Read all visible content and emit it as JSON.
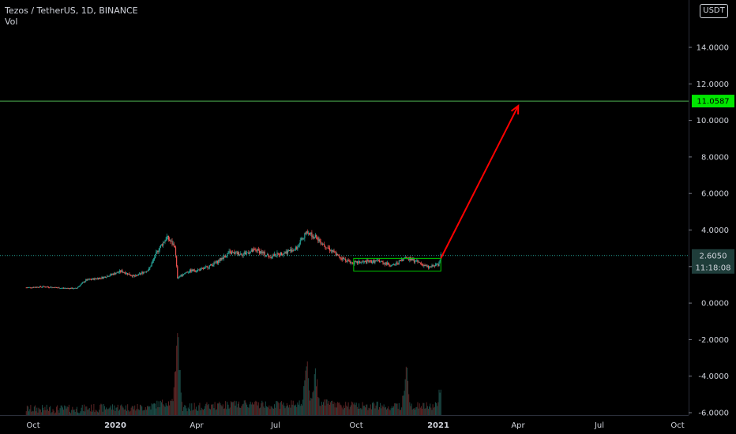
{
  "header": {
    "symbol_line": "Tezos / TetherUS, 1D, BINANCE",
    "volume_label": "Vol"
  },
  "currency_button": "USDT",
  "price_tags": {
    "target": "11.0587",
    "current": "2.6050",
    "countdown": "11:18:08"
  },
  "colors": {
    "up": "#26a69a",
    "down": "#ef5350",
    "target_line": "#4caf50",
    "target_tag_bg": "#00e600",
    "arrow": "#ff0000",
    "box": "#00c800"
  },
  "chart_data": {
    "type": "candlestick",
    "title": "Tezos / TetherUS, 1D, BINANCE",
    "y_axis": {
      "position": "right",
      "ticks": [
        14,
        12,
        10,
        8,
        6,
        4,
        2,
        0,
        -2,
        -4,
        -6
      ],
      "tick_labels": [
        "14.0000",
        "12.0000",
        "10.0000",
        "8.0000",
        "6.0000",
        "4.0000",
        "2.0000",
        "0.0000",
        "-2.0000",
        "-4.0000",
        "-6.0000"
      ],
      "range": [
        -6,
        16
      ]
    },
    "x_axis": {
      "tick_labels": [
        "Oct",
        "2020",
        "Apr",
        "Jul",
        "Oct",
        "2021",
        "Apr",
        "Jul",
        "Oct"
      ],
      "range": [
        "2019-09-25",
        "2021-10-31"
      ]
    },
    "close_series": [
      [
        "2019-09-25",
        0.85
      ],
      [
        "2019-10-15",
        0.9
      ],
      [
        "2019-11-05",
        0.82
      ],
      [
        "2019-11-20",
        0.8
      ],
      [
        "2019-12-01",
        1.25
      ],
      [
        "2019-12-20",
        1.4
      ],
      [
        "2020-01-10",
        1.75
      ],
      [
        "2020-01-25",
        1.45
      ],
      [
        "2020-02-10",
        1.85
      ],
      [
        "2020-02-20",
        2.9
      ],
      [
        "2020-03-01",
        3.6
      ],
      [
        "2020-03-10",
        3.1
      ],
      [
        "2020-03-13",
        1.4
      ],
      [
        "2020-03-25",
        1.75
      ],
      [
        "2020-04-10",
        1.85
      ],
      [
        "2020-04-25",
        2.2
      ],
      [
        "2020-05-10",
        2.75
      ],
      [
        "2020-05-25",
        2.7
      ],
      [
        "2020-06-10",
        2.9
      ],
      [
        "2020-06-25",
        2.55
      ],
      [
        "2020-07-10",
        2.75
      ],
      [
        "2020-07-25",
        3.0
      ],
      [
        "2020-08-05",
        3.9
      ],
      [
        "2020-08-15",
        3.6
      ],
      [
        "2020-08-25",
        3.2
      ],
      [
        "2020-09-10",
        2.55
      ],
      [
        "2020-09-25",
        2.2
      ],
      [
        "2020-10-10",
        2.25
      ],
      [
        "2020-10-25",
        2.3
      ],
      [
        "2020-11-10",
        2.05
      ],
      [
        "2020-11-25",
        2.5
      ],
      [
        "2020-12-10",
        2.2
      ],
      [
        "2020-12-20",
        1.95
      ],
      [
        "2020-12-31",
        2.1
      ],
      [
        "2021-01-03",
        2.605
      ]
    ],
    "volume_peaks": [
      [
        "2020-03-13",
        5.8
      ],
      [
        "2020-08-05",
        3.8
      ],
      [
        "2020-08-15",
        3.2
      ],
      [
        "2020-11-25",
        3.4
      ],
      [
        "2021-01-03",
        2.2
      ]
    ],
    "annotations": {
      "horizontal_line": 11.0587,
      "current_price_line": 2.605,
      "range_box": {
        "x": [
          "2020-09-27",
          "2021-01-03"
        ],
        "y": [
          1.75,
          2.45
        ]
      },
      "arrow": {
        "from": [
          "2021-01-03",
          2.45
        ],
        "to": [
          "2021-03-31",
          10.8
        ]
      }
    }
  }
}
